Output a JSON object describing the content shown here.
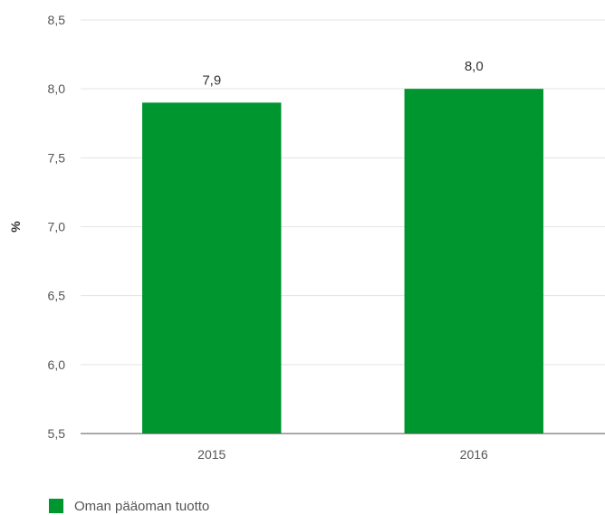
{
  "chart_data": {
    "type": "bar",
    "categories": [
      "2015",
      "2016"
    ],
    "series": [
      {
        "name": "Oman pääoman tuotto",
        "values": [
          7.9,
          8.0
        ],
        "value_labels": [
          "7,9",
          "8,0"
        ],
        "color": "#00962f"
      }
    ],
    "title": "",
    "xlabel": "",
    "ylabel": "%",
    "ylim": [
      5.5,
      8.5
    ],
    "y_ticks": [
      5.5,
      6.0,
      6.5,
      7.0,
      7.5,
      8.0,
      8.5
    ],
    "y_tick_labels": [
      "5,5",
      "6,0",
      "6,5",
      "7,0",
      "7,5",
      "8,0",
      "8,5"
    ],
    "grid": true,
    "legend_position": "bottom-left"
  }
}
